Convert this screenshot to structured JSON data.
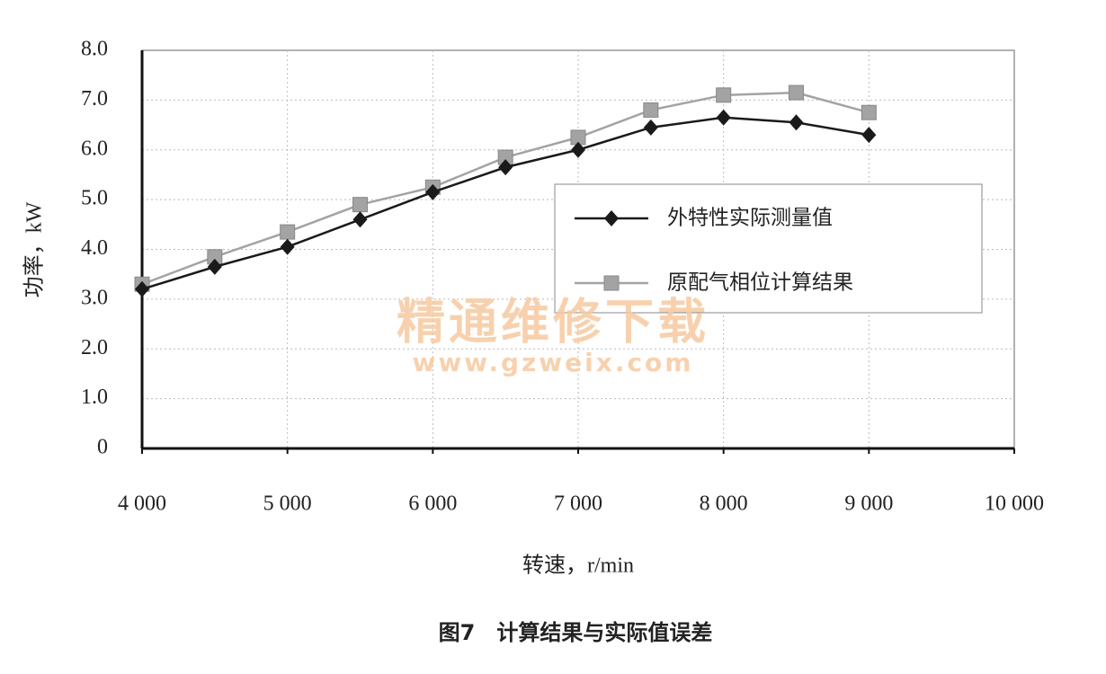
{
  "chart_data": {
    "type": "line",
    "caption": "图7　计算结果与实际值误差",
    "xlabel": "转速，r/min",
    "ylabel": "功率，kW",
    "watermark": [
      "精通维修下载",
      "www.gzweix.com"
    ],
    "x": [
      4000,
      4500,
      5000,
      5500,
      6000,
      6500,
      7000,
      7500,
      8000,
      8500,
      9000
    ],
    "series": [
      {
        "name": "外特性实际测量值",
        "color": "#1a1a1a",
        "marker": "diamond",
        "values": [
          3.2,
          3.65,
          4.05,
          4.6,
          5.15,
          5.65,
          6.0,
          6.45,
          6.65,
          6.55,
          6.3
        ]
      },
      {
        "name": "原配气相位计算结果",
        "color": "#a3a3a3",
        "marker": "square",
        "values": [
          3.3,
          3.85,
          4.35,
          4.9,
          5.25,
          5.85,
          6.25,
          6.8,
          7.1,
          7.15,
          6.75
        ]
      }
    ],
    "xlim": [
      4000,
      10000
    ],
    "xticks": [
      {
        "value": 4000,
        "label": "4 000"
      },
      {
        "value": 5000,
        "label": "5 000"
      },
      {
        "value": 6000,
        "label": "6 000"
      },
      {
        "value": 7000,
        "label": "7 000"
      },
      {
        "value": 8000,
        "label": "8 000"
      },
      {
        "value": 9000,
        "label": "9 000"
      },
      {
        "value": 10000,
        "label": "10 000"
      }
    ],
    "ylim": [
      0,
      8
    ],
    "yticks": [
      0,
      {
        "value": 1,
        "label": "1.0"
      },
      {
        "value": 2,
        "label": "2.0"
      },
      {
        "value": 3,
        "label": "3.0"
      },
      {
        "value": 4,
        "label": "4.0"
      },
      {
        "value": 5,
        "label": "5.0"
      },
      {
        "value": 6,
        "label": "6.0"
      },
      {
        "value": 7,
        "label": "7.0"
      },
      {
        "value": 8,
        "label": "8.0"
      }
    ],
    "grid": true
  }
}
